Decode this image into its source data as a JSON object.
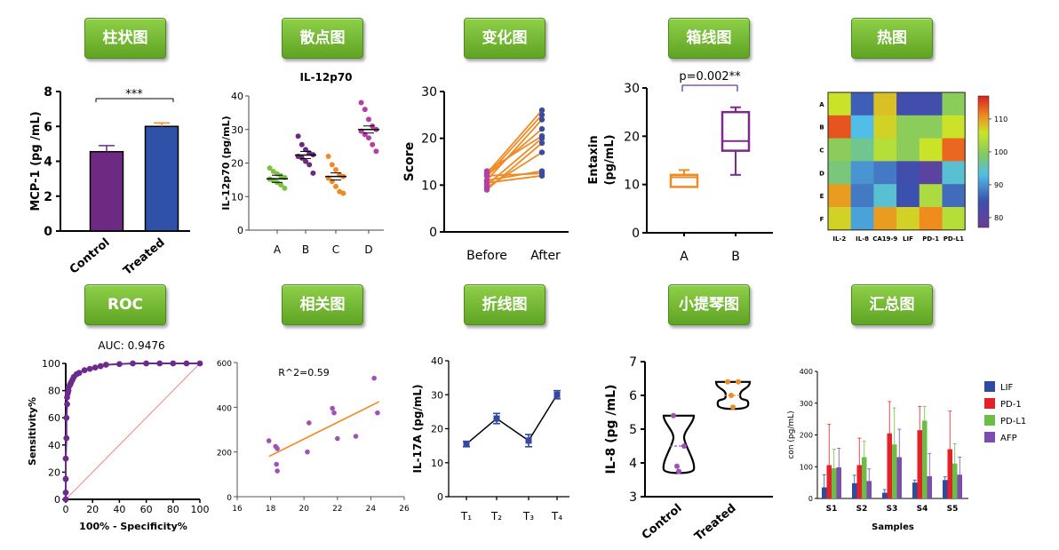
{
  "tags": [
    "柱状图",
    "散点图",
    "变化图",
    "箱线图",
    "热图",
    "ROC",
    "相关图",
    "折线图",
    "小提琴图",
    "汇总图"
  ],
  "chart_data": [
    {
      "id": "bar",
      "type": "bar",
      "title": "",
      "ylabel": "MCP-1 (pg /mL)",
      "categories": [
        "Control",
        "Treated"
      ],
      "values": [
        4.55,
        6.0
      ],
      "errors": [
        0.35,
        0.2
      ],
      "colors": [
        "#6e2a82",
        "#2f52a8"
      ],
      "ylim": [
        0,
        8
      ],
      "yticks": [
        "0",
        "2",
        "4",
        "6",
        "8"
      ],
      "significance": "***"
    },
    {
      "id": "dot",
      "type": "scatter",
      "title": "IL-12p70",
      "ylabel": "IL-12p70 (pg/mL)",
      "categories": [
        "A",
        "B",
        "C",
        "D"
      ],
      "ylim": [
        0,
        40
      ],
      "yticks": [
        "0",
        "10",
        "20",
        "30",
        "40"
      ],
      "colors": [
        "#7dc243",
        "#6c2a7f",
        "#f08a22",
        "#b43fa4"
      ],
      "means": [
        15.3,
        22.4,
        16.0,
        30.0
      ],
      "points": [
        [
          18.5,
          17.5,
          16.8,
          16.2,
          15.7,
          15.2,
          14.8,
          14.2,
          13.5,
          12.5
        ],
        [
          28.0,
          25.5,
          24.0,
          23.0,
          22.5,
          22.0,
          21.5,
          20.5,
          19.5,
          17.0
        ],
        [
          22.0,
          19.5,
          18.0,
          16.5,
          16.0,
          15.5,
          14.5,
          13.0,
          11.5,
          11.0
        ],
        [
          38.0,
          36.0,
          33.0,
          31.0,
          30.0,
          29.5,
          28.5,
          27.5,
          25.5,
          23.5
        ]
      ]
    },
    {
      "id": "change",
      "type": "line",
      "ylabel": "Score",
      "categories": [
        "Before",
        "After"
      ],
      "ylim": [
        0,
        30
      ],
      "yticks": [
        "0",
        "10",
        "20",
        "30"
      ],
      "pairs": [
        [
          12.5,
          26
        ],
        [
          12,
          25
        ],
        [
          11,
          24
        ],
        [
          12,
          22
        ],
        [
          10,
          20
        ],
        [
          9,
          19
        ],
        [
          11,
          13
        ],
        [
          12,
          12.5
        ],
        [
          10.5,
          12
        ],
        [
          13,
          20.5
        ],
        [
          9.5,
          17
        ]
      ],
      "line_color": "#f08a22",
      "before_color": "#b43fa4",
      "after_color": "#3b4da0"
    },
    {
      "id": "box",
      "type": "box",
      "ylabel": "Entaxin (pg/mL)",
      "categories": [
        "A",
        "B"
      ],
      "ylim": [
        0,
        30
      ],
      "yticks": [
        "0",
        "10",
        "20",
        "30"
      ],
      "boxes": [
        {
          "min": 9.5,
          "q1": 9.5,
          "median": 11.5,
          "q3": 12,
          "max": 13,
          "color": "#f08a22"
        },
        {
          "min": 12,
          "q1": 17,
          "median": 19,
          "q3": 25,
          "max": 26,
          "color": "#7b2a8c"
        }
      ],
      "significance": "p=0.002**"
    },
    {
      "id": "heatmap",
      "type": "heatmap",
      "rows": [
        "A",
        "B",
        "C",
        "D",
        "E",
        "F"
      ],
      "cols": [
        "IL-2",
        "IL-8",
        "CA19-9",
        "LIF",
        "PD-1",
        "PD-L1"
      ],
      "values": [
        [
          106,
          86,
          108,
          84,
          84,
          100
        ],
        [
          114,
          93,
          107,
          100,
          100,
          106
        ],
        [
          100,
          97,
          104,
          100,
          106,
          113
        ],
        [
          98,
          90,
          88,
          84,
          80,
          94
        ],
        [
          110,
          88,
          94,
          85,
          103,
          87
        ],
        [
          107,
          91,
          110,
          107,
          111,
          104
        ]
      ],
      "colorbar_ticks": [
        "80",
        "90",
        "100",
        "110"
      ],
      "range": [
        77,
        117
      ]
    },
    {
      "id": "roc",
      "type": "line",
      "title": "AUC: 0.9476",
      "xlabel": "100% - Specificity%",
      "ylabel": "Sensitivity%",
      "xlim": [
        0,
        100
      ],
      "ylim": [
        0,
        100
      ],
      "xticks": [
        "0",
        "20",
        "40",
        "60",
        "80",
        "100"
      ],
      "yticks": [
        "0",
        "20",
        "40",
        "60",
        "80",
        "100"
      ],
      "x": [
        0,
        0,
        0,
        0,
        0.5,
        0.5,
        1,
        1,
        1.5,
        2,
        2,
        3,
        3.5,
        4,
        5,
        6,
        8,
        10,
        14,
        18,
        22,
        26,
        30,
        40,
        50,
        60,
        70,
        80,
        90,
        100
      ],
      "y": [
        0,
        5,
        15,
        30,
        45,
        60,
        70,
        75,
        78,
        80,
        82,
        84,
        85,
        86,
        88,
        90,
        92,
        93,
        95,
        96,
        97,
        98,
        99,
        99.5,
        100,
        100,
        100,
        100,
        100,
        100
      ],
      "color": "#6c2a8c",
      "diagonal_color": "#e06a5a"
    },
    {
      "id": "corr",
      "type": "scatter",
      "annotation": "R^2=0.59",
      "xlim": [
        16,
        26
      ],
      "ylim": [
        0,
        600
      ],
      "xticks": [
        "16",
        "18",
        "20",
        "22",
        "24",
        "26"
      ],
      "yticks": [
        "0",
        "200",
        "400",
        "600"
      ],
      "x": [
        17.9,
        18.3,
        18.4,
        18.35,
        18.4,
        20.2,
        20.3,
        21.7,
        21.8,
        22.0,
        23.1,
        24.2,
        24.4
      ],
      "y": [
        250,
        225,
        215,
        145,
        115,
        200,
        330,
        395,
        375,
        260,
        270,
        530,
        375
      ],
      "fit": {
        "x0": 17.9,
        "y0": 180,
        "x1": 24.5,
        "y1": 425
      },
      "point_color": "#a050b8",
      "fit_color": "#f08a22"
    },
    {
      "id": "line",
      "type": "line",
      "ylabel": "IL-17A  (pg/mL)",
      "categories": [
        "T₁",
        "T₂",
        "T₃",
        "T₄"
      ],
      "values": [
        15.5,
        23.0,
        16.5,
        30.0
      ],
      "errors": [
        0.8,
        1.5,
        1.8,
        1.2
      ],
      "ylim": [
        0,
        40
      ],
      "yticks": [
        "0",
        "10",
        "20",
        "30",
        "40"
      ],
      "color": "#2f4aa0"
    },
    {
      "id": "violin",
      "type": "violin",
      "ylabel": "IL-8 (pg /mL)",
      "categories": [
        "Control",
        "Treated"
      ],
      "ylim": [
        3,
        7
      ],
      "yticks": [
        "3",
        "4",
        "5",
        "6",
        "7"
      ],
      "groups": [
        {
          "points": [
            5.4,
            4.5,
            3.9,
            3.75
          ],
          "median": 4.5,
          "color": "#a050b8"
        },
        {
          "points": [
            6.4,
            6.4,
            6.0,
            5.65
          ],
          "median": 6.0,
          "color": "#f08a22"
        }
      ]
    },
    {
      "id": "summary",
      "type": "bar",
      "xlabel": "Samples",
      "ylabel": "con (pg/mL)",
      "categories": [
        "S1",
        "S2",
        "S3",
        "S4",
        "S5"
      ],
      "ylim": [
        0,
        400
      ],
      "yticks": [
        "0",
        "100",
        "200",
        "300",
        "400"
      ],
      "series": [
        {
          "name": "LIF",
          "color": "#2f4aa0",
          "values": [
            35,
            48,
            18,
            50,
            58
          ],
          "errors": [
            40,
            25,
            10,
            8,
            10
          ]
        },
        {
          "name": "PD-1",
          "color": "#e32227",
          "values": [
            105,
            105,
            205,
            215,
            155
          ],
          "errors": [
            128,
            85,
            100,
            75,
            120
          ]
        },
        {
          "name": "PD-L1",
          "color": "#6bbd45",
          "values": [
            95,
            130,
            170,
            245,
            110
          ],
          "errors": [
            60,
            50,
            115,
            45,
            62
          ]
        },
        {
          "name": "AFP",
          "color": "#7e4bb0",
          "values": [
            98,
            55,
            130,
            70,
            75
          ],
          "errors": [
            60,
            38,
            88,
            72,
            55
          ]
        }
      ]
    }
  ]
}
